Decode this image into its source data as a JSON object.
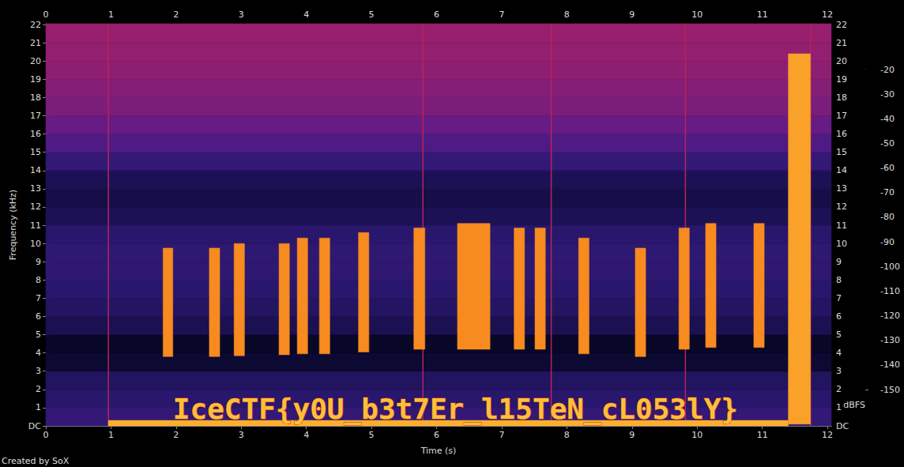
{
  "chart_data": {
    "type": "spectrogram",
    "x_label": "Time (s)",
    "y_label": "Frequency (kHz)",
    "credit": "Created by SoX",
    "xlim": [
      0,
      12.06
    ],
    "xticks": [
      0,
      1,
      2,
      3,
      4,
      5,
      6,
      7,
      8,
      9,
      10,
      11,
      12
    ],
    "ylim": [
      0,
      22.05
    ],
    "yticks": [
      {
        "value": 0,
        "label": "DC"
      },
      1,
      2,
      3,
      4,
      5,
      6,
      7,
      8,
      9,
      10,
      11,
      12,
      13,
      14,
      15,
      16,
      17,
      18,
      19,
      20,
      21,
      22
    ],
    "grid": false,
    "colorbar": {
      "label": "dBFS",
      "range": [
        -150,
        -20
      ],
      "ticks": [
        -20,
        -30,
        -40,
        -50,
        -60,
        -70,
        -80,
        -90,
        -100,
        -110,
        -120,
        -130,
        -140,
        -150
      ],
      "colors": [
        "#000000",
        "#0b0830",
        "#2a1870",
        "#5a1a8a",
        "#a0206a",
        "#d02840",
        "#f05010",
        "#f89020",
        "#fcd040",
        "#ffffff"
      ]
    },
    "noise_floor": [
      {
        "from": 0,
        "to": 1,
        "dBFS": -118
      },
      {
        "from": 1,
        "to": 2,
        "dBFS": -122
      },
      {
        "from": 2,
        "to": 3,
        "dBFS": -125
      },
      {
        "from": 3,
        "to": 4,
        "dBFS": -135
      },
      {
        "from": 4,
        "to": 5,
        "dBFS": -138
      },
      {
        "from": 5,
        "to": 6,
        "dBFS": -128
      },
      {
        "from": 6,
        "to": 7,
        "dBFS": -124
      },
      {
        "from": 7,
        "to": 8,
        "dBFS": -122
      },
      {
        "from": 8,
        "to": 9,
        "dBFS": -120
      },
      {
        "from": 9,
        "to": 10,
        "dBFS": -120
      },
      {
        "from": 10,
        "to": 11,
        "dBFS": -122
      },
      {
        "from": 11,
        "to": 12,
        "dBFS": -127
      },
      {
        "from": 12,
        "to": 13,
        "dBFS": -130
      },
      {
        "from": 13,
        "to": 14,
        "dBFS": -127
      },
      {
        "from": 14,
        "to": 15,
        "dBFS": -118
      },
      {
        "from": 15,
        "to": 16,
        "dBFS": -110
      },
      {
        "from": 16,
        "to": 17,
        "dBFS": -104
      },
      {
        "from": 17,
        "to": 18,
        "dBFS": -100
      },
      {
        "from": 18,
        "to": 19,
        "dBFS": -98
      },
      {
        "from": 19,
        "to": 20,
        "dBFS": -96
      },
      {
        "from": 20,
        "to": 21,
        "dBFS": -95
      },
      {
        "from": 21,
        "to": 22.05,
        "dBFS": -94
      }
    ],
    "clicks": {
      "times": [
        0.96,
        5.79,
        7.76,
        9.82,
        11.74
      ],
      "dBFS": -85
    },
    "bursts": [
      {
        "start": 0.96,
        "end": 11.4,
        "low": 0,
        "high": 0.3,
        "dBFS": -42
      },
      {
        "start": 1.8,
        "end": 1.95,
        "low": 3.8,
        "high": 9.75,
        "dBFS": -50
      },
      {
        "start": 2.51,
        "end": 2.67,
        "low": 3.8,
        "high": 9.75,
        "dBFS": -50
      },
      {
        "start": 2.89,
        "end": 3.05,
        "low": 3.85,
        "high": 10.0,
        "dBFS": -50
      },
      {
        "start": 3.58,
        "end": 3.74,
        "low": 3.9,
        "high": 10.0,
        "dBFS": -50
      },
      {
        "start": 3.86,
        "end": 4.02,
        "low": 3.95,
        "high": 10.3,
        "dBFS": -50
      },
      {
        "start": 4.2,
        "end": 4.36,
        "low": 3.95,
        "high": 10.3,
        "dBFS": -50
      },
      {
        "start": 4.8,
        "end": 4.96,
        "low": 4.05,
        "high": 10.6,
        "dBFS": -50
      },
      {
        "start": 5.65,
        "end": 5.82,
        "low": 4.2,
        "high": 10.85,
        "dBFS": -50
      },
      {
        "start": 6.32,
        "end": 6.82,
        "low": 4.2,
        "high": 11.1,
        "dBFS": -50
      },
      {
        "start": 7.19,
        "end": 7.35,
        "low": 4.2,
        "high": 10.85,
        "dBFS": -50
      },
      {
        "start": 7.51,
        "end": 7.67,
        "low": 4.2,
        "high": 10.85,
        "dBFS": -50
      },
      {
        "start": 8.18,
        "end": 8.34,
        "low": 3.95,
        "high": 10.3,
        "dBFS": -50
      },
      {
        "start": 9.05,
        "end": 9.21,
        "low": 3.8,
        "high": 9.75,
        "dBFS": -50
      },
      {
        "start": 9.72,
        "end": 9.88,
        "low": 4.2,
        "high": 10.85,
        "dBFS": -50
      },
      {
        "start": 10.13,
        "end": 10.29,
        "low": 4.3,
        "high": 11.1,
        "dBFS": -50
      },
      {
        "start": 10.87,
        "end": 11.03,
        "low": 4.3,
        "high": 11.1,
        "dBFS": -50
      },
      {
        "start": 11.4,
        "end": 11.74,
        "low": 0.1,
        "high": 20.4,
        "dBFS": -45
      }
    ],
    "annotations": [
      {
        "text": "IceCTF{y0U_b3t7Er_l15TeN_cL053lY}",
        "x": 6.29,
        "y": 0.95,
        "dBFS": -38
      }
    ]
  }
}
